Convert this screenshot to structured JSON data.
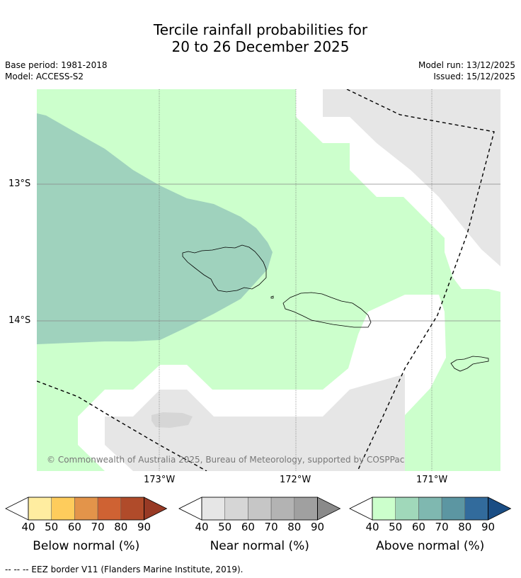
{
  "title_line1": "Tercile rainfall probabilities for",
  "title_line2": "20 to 26 December 2025",
  "base_period": "Base period: 1981-2018",
  "model": "Model: ACCESS-S2",
  "model_run": "Model run: 13/12/2025",
  "issued": "Issued: 15/12/2025",
  "lat_labels": [
    "13°S",
    "14°S"
  ],
  "lon_labels": [
    "173°W",
    "172°W",
    "171°W"
  ],
  "copyright": "© Commonwealth of Australia 2025, Bureau of Meteorology, supported by COSPPac",
  "colorbars": [
    {
      "title": "Below normal (%)",
      "ticks": [
        "40",
        "50",
        "60",
        "70",
        "80",
        "90"
      ],
      "colors": [
        "#ffeda0",
        "#fecc5c",
        "#e3944a",
        "#cf6233",
        "#b04b2a",
        "#983a25"
      ]
    },
    {
      "title": "Near normal (%)",
      "ticks": [
        "40",
        "50",
        "60",
        "70",
        "80",
        "90"
      ],
      "colors": [
        "#e6e6e6",
        "#d6d6d6",
        "#c6c6c6",
        "#b3b3b3",
        "#a0a0a0",
        "#8a8a8a"
      ]
    },
    {
      "title": "Above normal (%)",
      "ticks": [
        "40",
        "50",
        "60",
        "70",
        "80",
        "90"
      ],
      "colors": [
        "#ccffcc",
        "#a0d8ba",
        "#7fb8b0",
        "#5c96a2",
        "#326b9c",
        "#1a4d84"
      ]
    }
  ],
  "footnote": "--  --  -- EEZ border V11 (Flanders Marine Institute, 2019).",
  "colors": {
    "above_40_50": "#ccffcc",
    "above_50_60": "#9fd2bd",
    "near_40_50": "#e6e6e6",
    "near_50_60": "#d6d6d6"
  }
}
